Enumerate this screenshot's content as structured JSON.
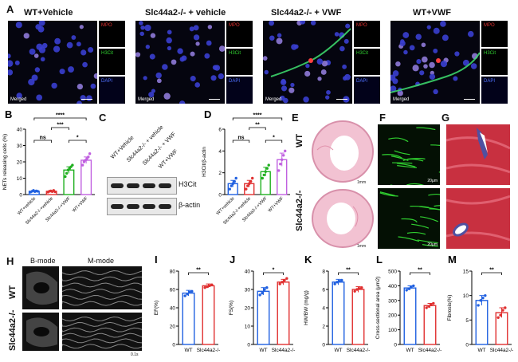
{
  "panelA": {
    "label": "A",
    "conditions": [
      "WT+Vehicle",
      "Slc44a2-/- + vehicle",
      "Slc44a2-/- + VWF",
      "WT+VWF"
    ],
    "channels": {
      "mpo": "MPO",
      "h3cit": "H3Cit",
      "dapi": "DAPI",
      "merged": "Merged"
    }
  },
  "panelC": {
    "label": "C",
    "lanes": [
      "WT+Vehicle",
      "Slc44a2-/- + vehicle",
      "Slc44a2-/- + VWF",
      "WT+VWF"
    ],
    "bands": [
      "H3Cit",
      "β-actin"
    ]
  },
  "panelE": {
    "label": "E",
    "rows": [
      "WT",
      "Slc44a2-/-"
    ],
    "scale": "1mm"
  },
  "panelF": {
    "label": "F",
    "scale": "20μm"
  },
  "panelG": {
    "label": "G"
  },
  "panelH": {
    "label": "H",
    "modes": [
      "B-mode",
      "M-mode"
    ],
    "rows": [
      "WT",
      "Slc44a2-/-"
    ],
    "tick": "0.1s"
  },
  "chart_data": [
    {
      "id": "B",
      "type": "bar",
      "label": "B",
      "ylabel": "NETs releasing cells (%)",
      "categories": [
        "WT+vehicle",
        "Slc44a2-/-+vehicle",
        "Slc44a2-/-+VWF",
        "WT+VWF"
      ],
      "values": [
        2,
        2,
        15,
        21
      ],
      "errors": [
        0.5,
        0.5,
        2,
        2
      ],
      "ylim": [
        0,
        40
      ],
      "yticks": [
        0,
        10,
        20,
        30,
        40
      ],
      "colors": [
        "#2060e0",
        "#e03030",
        "#20b020",
        "#c060e0"
      ],
      "points": [
        [
          1.5,
          2,
          2.5,
          1.8,
          2.2,
          2
        ],
        [
          1.5,
          2,
          2.2,
          1.8,
          2.5,
          1.7
        ],
        [
          11,
          13,
          15,
          16,
          17,
          18
        ],
        [
          18,
          20,
          21,
          22,
          23,
          25
        ]
      ],
      "sig": [
        {
          "a": 0,
          "b": 3,
          "text": "****",
          "level": 4
        },
        {
          "a": 0,
          "b": 1,
          "text": "ns",
          "level": 1
        },
        {
          "a": 1,
          "b": 2,
          "text": "***",
          "level": 2
        },
        {
          "a": 2,
          "b": 3,
          "text": "*",
          "level": 1
        }
      ]
    },
    {
      "id": "D",
      "type": "bar",
      "label": "D",
      "ylabel": "H3Cit/β-actin",
      "categories": [
        "WT+vehicle",
        "Slc44a2-/-+vehicle",
        "Slc44a2-/-+VWF",
        "WT+VWF"
      ],
      "values": [
        1,
        1,
        2.1,
        3.2
      ],
      "errors": [
        0.3,
        0.3,
        0.4,
        0.6
      ],
      "ylim": [
        0,
        6
      ],
      "yticks": [
        0,
        2,
        4,
        6
      ],
      "colors": [
        "#2060e0",
        "#e03030",
        "#20b020",
        "#c060e0"
      ],
      "points": [
        [
          0.5,
          0.8,
          1.0,
          1.2,
          1.5
        ],
        [
          0.5,
          0.8,
          1.0,
          1.2,
          1.5
        ],
        [
          1.5,
          1.8,
          2.1,
          2.4,
          2.7
        ],
        [
          2.2,
          2.8,
          3.2,
          3.6,
          4.0
        ]
      ],
      "sig": [
        {
          "a": 0,
          "b": 3,
          "text": "****",
          "level": 4
        },
        {
          "a": 0,
          "b": 1,
          "text": "ns",
          "level": 1
        },
        {
          "a": 1,
          "b": 2,
          "text": "**",
          "level": 2
        },
        {
          "a": 2,
          "b": 3,
          "text": "*",
          "level": 1
        }
      ]
    },
    {
      "id": "I",
      "type": "bar",
      "label": "I",
      "ylabel": "EF(%)",
      "categories": [
        "WT",
        "Slc44a2-/-"
      ],
      "values": [
        56,
        64
      ],
      "errors": [
        3,
        2
      ],
      "ylim": [
        0,
        80
      ],
      "yticks": [
        0,
        20,
        40,
        60,
        80
      ],
      "colors": [
        "#2060e0",
        "#e03030"
      ],
      "points": [
        [
          53,
          55,
          57,
          58
        ],
        [
          62,
          63,
          64,
          65
        ]
      ],
      "sig": [
        {
          "a": 0,
          "b": 1,
          "text": "**",
          "level": 1
        }
      ]
    },
    {
      "id": "J",
      "type": "bar",
      "label": "J",
      "ylabel": "FS(%)",
      "categories": [
        "WT",
        "Slc44a2-/-"
      ],
      "values": [
        29,
        34
      ],
      "errors": [
        2,
        1.5
      ],
      "ylim": [
        0,
        40
      ],
      "yticks": [
        0,
        10,
        20,
        30,
        40
      ],
      "colors": [
        "#2060e0",
        "#e03030"
      ],
      "points": [
        [
          27,
          28,
          30,
          31
        ],
        [
          33,
          34,
          35,
          36
        ]
      ],
      "sig": [
        {
          "a": 0,
          "b": 1,
          "text": "*",
          "level": 1
        }
      ]
    },
    {
      "id": "K",
      "type": "bar",
      "label": "K",
      "ylabel": "HW/BW (mg/g)",
      "categories": [
        "WT",
        "Slc44a2-/-"
      ],
      "values": [
        6.8,
        6.0
      ],
      "errors": [
        0.3,
        0.3
      ],
      "ylim": [
        0,
        8
      ],
      "yticks": [
        0,
        2,
        4,
        6,
        8
      ],
      "colors": [
        "#2060e0",
        "#e03030"
      ],
      "points": [
        [
          6.6,
          6.8,
          6.9,
          7.0
        ],
        [
          5.8,
          6.0,
          6.1,
          6.2
        ]
      ],
      "sig": [
        {
          "a": 0,
          "b": 1,
          "text": "**",
          "level": 1
        }
      ]
    },
    {
      "id": "L",
      "type": "bar",
      "label": "L",
      "ylabel": "Cross-sectional area (μm2)",
      "categories": [
        "WT",
        "Slc44a2-/-"
      ],
      "values": [
        385,
        265
      ],
      "errors": [
        15,
        15
      ],
      "ylim": [
        0,
        500
      ],
      "yticks": [
        0,
        100,
        200,
        300,
        400,
        500
      ],
      "colors": [
        "#2060e0",
        "#e03030"
      ],
      "points": [
        [
          370,
          380,
          390,
          400
        ],
        [
          250,
          260,
          270,
          280
        ]
      ],
      "sig": [
        {
          "a": 0,
          "b": 1,
          "text": "**",
          "level": 1
        }
      ]
    },
    {
      "id": "M",
      "type": "bar",
      "label": "M",
      "ylabel": "Fibrosis(%)",
      "categories": [
        "WT",
        "Slc44a2-/-"
      ],
      "values": [
        9,
        6.5
      ],
      "errors": [
        1,
        1
      ],
      "ylim": [
        0,
        15
      ],
      "yticks": [
        0,
        5,
        10,
        15
      ],
      "colors": [
        "#2060e0",
        "#e03030"
      ],
      "points": [
        [
          8,
          9,
          9.5,
          10
        ],
        [
          5.5,
          6,
          7,
          7.5
        ]
      ],
      "sig": [
        {
          "a": 0,
          "b": 1,
          "text": "**",
          "level": 1
        }
      ]
    }
  ]
}
